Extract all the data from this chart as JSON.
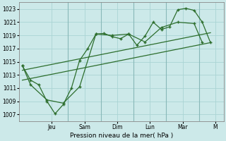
{
  "bg_color": "#cce9e9",
  "grid_color": "#aad4d4",
  "line_color": "#2d6e2d",
  "marker_color": "#2d6e2d",
  "yticks": [
    1007,
    1009,
    1011,
    1013,
    1015,
    1017,
    1019,
    1021,
    1023
  ],
  "ylim": [
    1006.0,
    1024.0
  ],
  "xlim": [
    0.0,
    12.5
  ],
  "day_labels": [
    "Jeu",
    "Sam",
    "Dim",
    "Lun",
    "Mar",
    "M"
  ],
  "day_positions": [
    2.0,
    4.0,
    6.0,
    8.0,
    10.0,
    12.0
  ],
  "vline_positions": [
    3.0,
    5.0,
    7.0,
    9.0,
    11.0
  ],
  "xlabel": "Pression niveau de la mer( hPa )",
  "line1_x": [
    0.2,
    0.7,
    1.2,
    1.7,
    2.2,
    2.7,
    3.2,
    3.7,
    4.2,
    4.7,
    5.2,
    5.7,
    6.2,
    6.7,
    7.2,
    7.7,
    8.2,
    8.7,
    9.2,
    9.7,
    10.2,
    10.7,
    11.2,
    11.7
  ],
  "line1_y": [
    1014.4,
    1012.2,
    1011.5,
    1009.0,
    1007.1,
    1008.5,
    1011.0,
    1015.2,
    1017.0,
    1019.2,
    1019.3,
    1018.8,
    1018.5,
    1019.2,
    1017.5,
    1018.9,
    1021.0,
    1019.9,
    1020.3,
    1022.9,
    1023.1,
    1022.8,
    1021.0,
    1017.9
  ],
  "line2_x": [
    0.2,
    0.7,
    1.7,
    2.7,
    3.7,
    4.7,
    5.7,
    6.7,
    7.7,
    8.7,
    9.7,
    10.7,
    11.2
  ],
  "line2_y": [
    1014.4,
    1011.5,
    1009.2,
    1008.7,
    1011.2,
    1019.2,
    1019.0,
    1019.2,
    1018.0,
    1020.2,
    1021.0,
    1020.8,
    1017.9
  ],
  "trend_x": [
    0.2,
    11.7
  ],
  "trend_y": [
    1012.2,
    1017.9
  ]
}
